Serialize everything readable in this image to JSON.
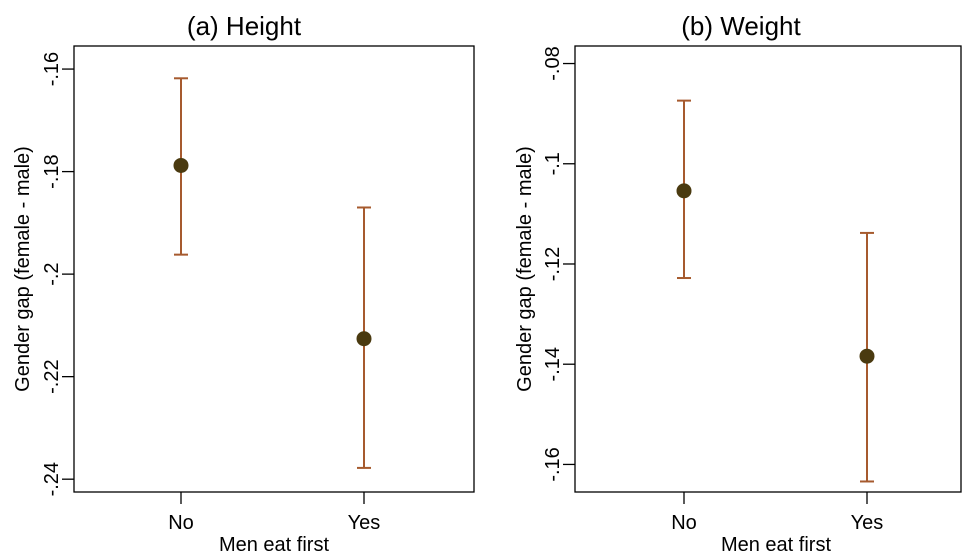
{
  "chart_data": [
    {
      "type": "scatter",
      "title": "(a) Height",
      "xlabel": "Men eat first",
      "ylabel": "Gender gap (female - male)",
      "categories": [
        "No",
        "Yes"
      ],
      "yticks": [
        "-.16",
        "-.18",
        "-.2",
        "-.22",
        "-.24"
      ],
      "ylim": [
        -0.2425,
        -0.1555
      ],
      "grid": false,
      "legend": "none",
      "point_color": "#4a3a10",
      "errorbar_color": "#a65a2e",
      "series": [
        {
          "points": [
            {
              "x": "No",
              "y": -0.1788,
              "lower": -0.1962,
              "upper": -0.1618
            },
            {
              "x": "Yes",
              "y": -0.2126,
              "lower": -0.2378,
              "upper": -0.187
            }
          ]
        }
      ]
    },
    {
      "type": "scatter",
      "title": "(b) Weight",
      "xlabel": "Men eat first",
      "ylabel": "Gender gap (female - male)",
      "categories": [
        "No",
        "Yes"
      ],
      "yticks": [
        "-.08",
        "-.1",
        "-.12",
        "-.14",
        "-.16"
      ],
      "ylim": [
        -0.1655,
        -0.0765
      ],
      "grid": false,
      "legend": "none",
      "point_color": "#4a3a10",
      "errorbar_color": "#a65a2e",
      "series": [
        {
          "points": [
            {
              "x": "No",
              "y": -0.1054,
              "lower": -0.1228,
              "upper": -0.0874
            },
            {
              "x": "Yes",
              "y": -0.1384,
              "lower": -0.1634,
              "upper": -0.1138
            }
          ]
        }
      ]
    }
  ]
}
